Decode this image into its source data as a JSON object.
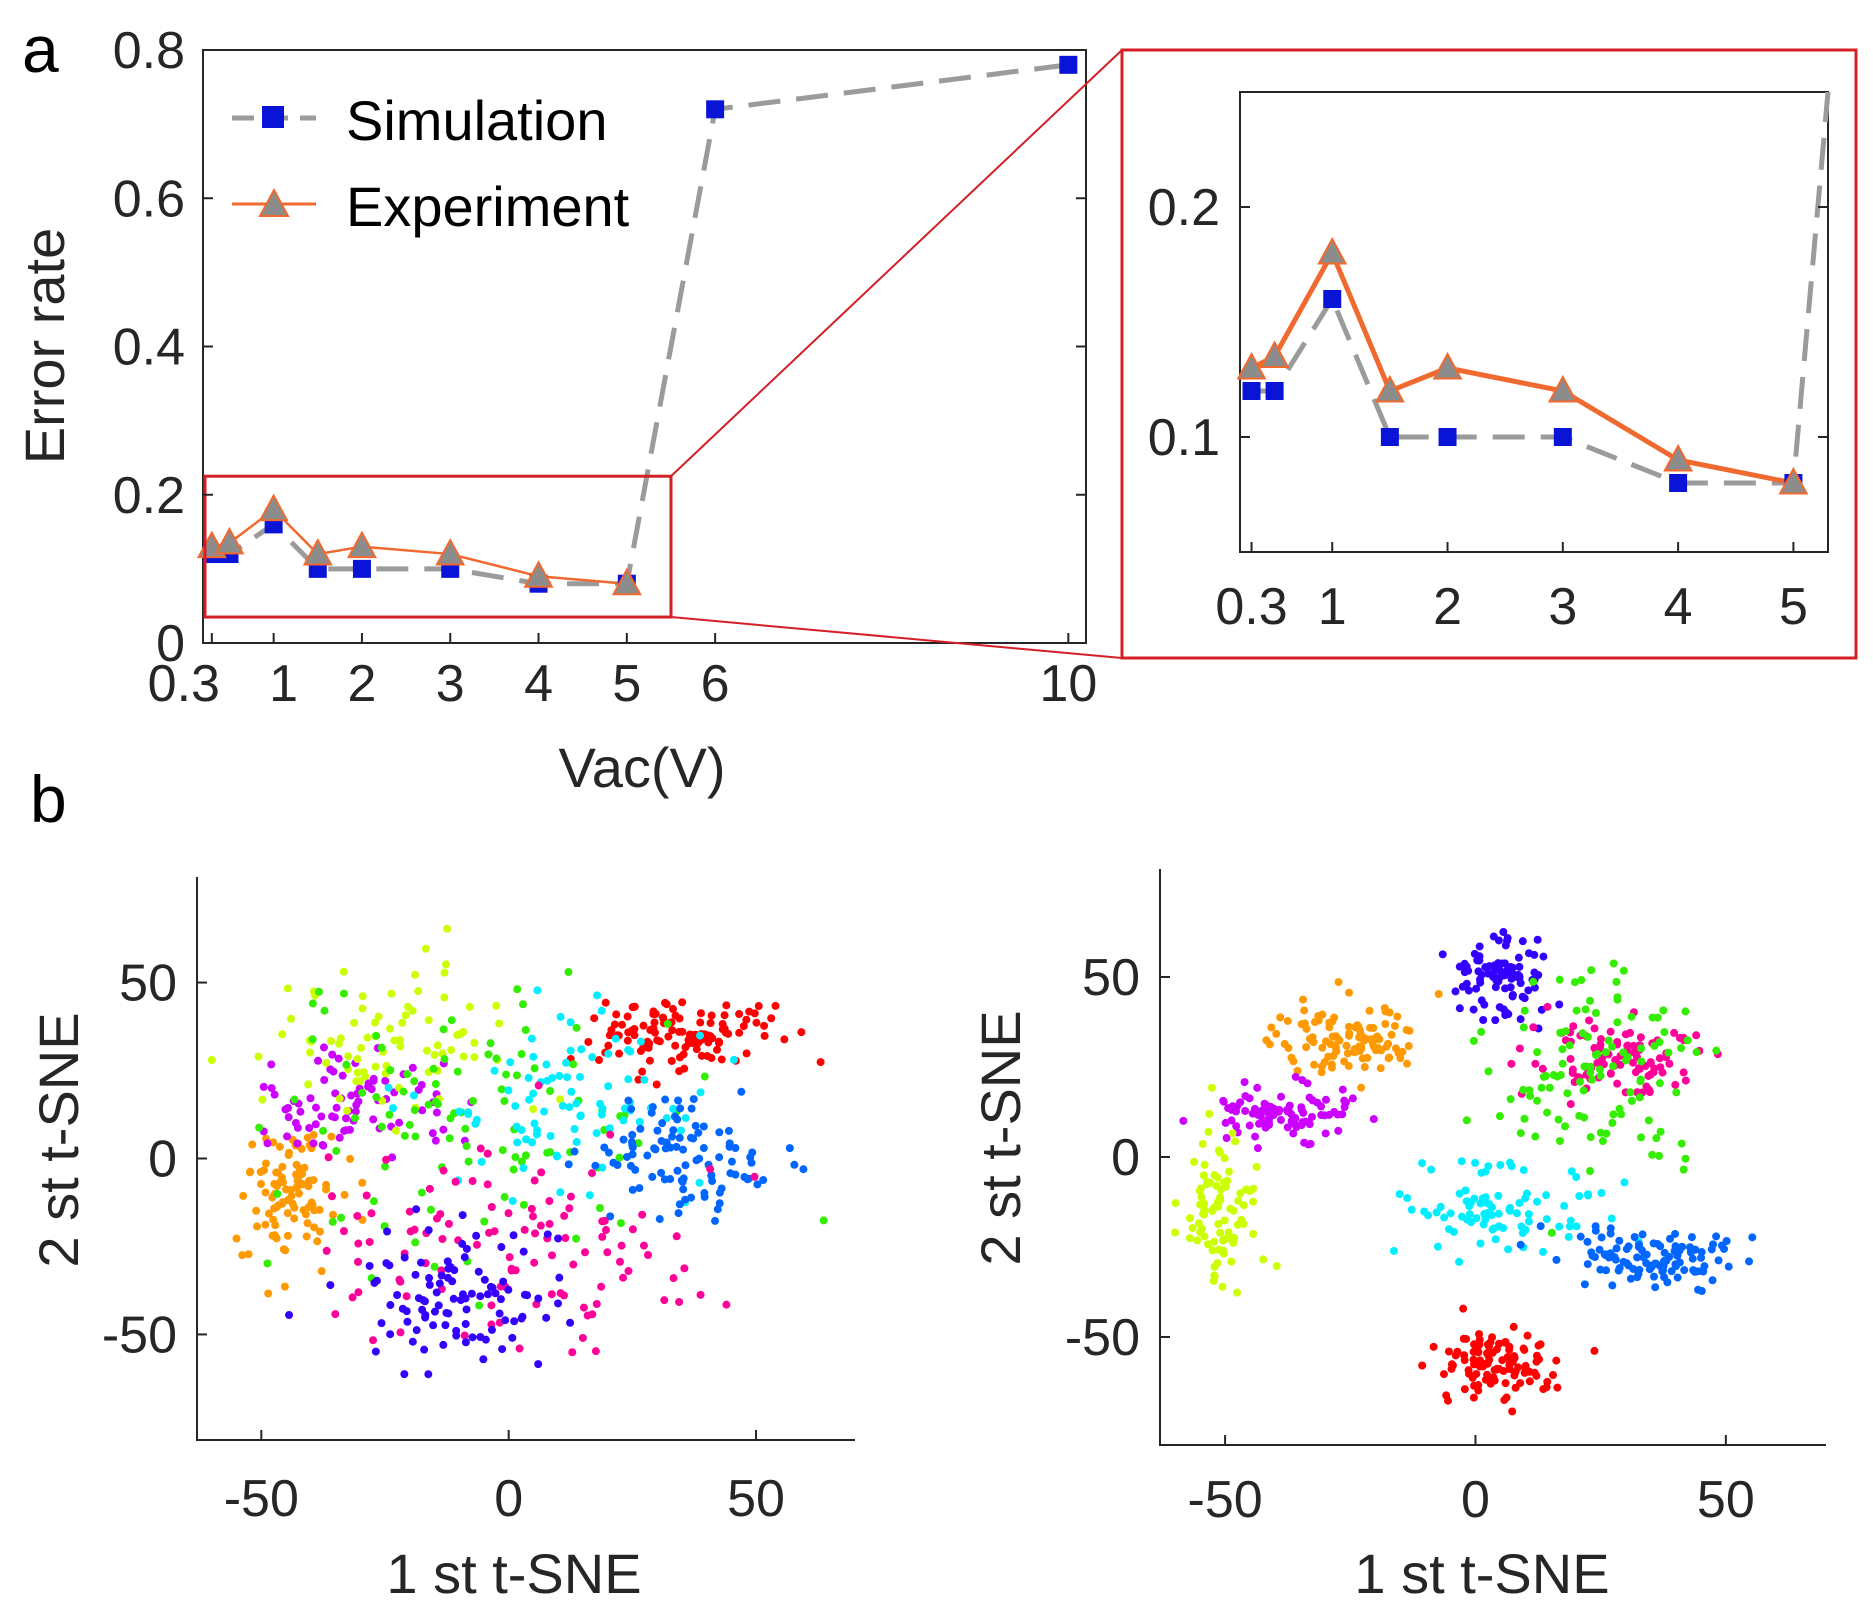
{
  "colors": {
    "simulation_line": "#9b9b9b",
    "simulation_marker": "#0a14d6",
    "experiment_line": "#f06a30",
    "experiment_marker": "#8c8c8c",
    "zoom_box": "#d41f26",
    "axis": "#262626"
  },
  "chart_data": [
    {
      "id": "a-main",
      "panel_label": "a",
      "type": "line",
      "xlabel": "Vac(V)",
      "ylabel": "Error rate",
      "xlim": [
        0.2,
        10.2
      ],
      "ylim": [
        0,
        0.8
      ],
      "xticks": [
        0.3,
        1,
        2,
        3,
        4,
        5,
        6,
        10
      ],
      "xtick_labels": [
        "0.3",
        "1",
        "2",
        "3",
        "4",
        "5",
        "6",
        "10"
      ],
      "yticks": [
        0,
        0.2,
        0.4,
        0.6,
        0.8
      ],
      "ytick_labels": [
        "0",
        "0.2",
        "0.4",
        "0.6",
        "0.8"
      ],
      "legend": {
        "position": "top-left",
        "entries": [
          "Simulation",
          "Experiment"
        ]
      },
      "series": [
        {
          "name": "Simulation",
          "x": [
            0.3,
            0.5,
            1,
            1.5,
            2,
            3,
            4,
            5,
            6,
            10
          ],
          "y": [
            0.12,
            0.12,
            0.16,
            0.1,
            0.1,
            0.1,
            0.08,
            0.08,
            0.72,
            0.78
          ]
        },
        {
          "name": "Experiment",
          "x": [
            0.3,
            0.5,
            1,
            1.5,
            2,
            3,
            4,
            5
          ],
          "y": [
            0.13,
            0.135,
            0.18,
            0.12,
            0.13,
            0.12,
            0.09,
            0.08
          ]
        }
      ],
      "zoom_box": {
        "x": [
          0.2,
          5.5
        ],
        "y": [
          0.035,
          0.225
        ]
      }
    },
    {
      "id": "a-zoom",
      "type": "line",
      "xlim": [
        0.2,
        5.3
      ],
      "ylim": [
        0.05,
        0.25
      ],
      "xticks": [
        0.3,
        1,
        2,
        3,
        4,
        5
      ],
      "xtick_labels": [
        "0.3",
        "1",
        "2",
        "3",
        "4",
        "5"
      ],
      "yticks": [
        0.1,
        0.2
      ],
      "ytick_labels": [
        "0.1",
        "0.2"
      ],
      "series": [
        {
          "name": "Simulation",
          "x": [
            0.3,
            0.5,
            1,
            1.5,
            2,
            3,
            4,
            5,
            5.3
          ],
          "y": [
            0.12,
            0.12,
            0.16,
            0.1,
            0.1,
            0.1,
            0.08,
            0.08,
            0.25
          ]
        },
        {
          "name": "Experiment",
          "x": [
            0.3,
            0.5,
            1,
            1.5,
            2,
            3,
            4,
            5
          ],
          "y": [
            0.13,
            0.135,
            0.18,
            0.12,
            0.13,
            0.12,
            0.09,
            0.08
          ]
        }
      ]
    },
    {
      "id": "b-left",
      "panel_label": "b",
      "type": "scatter",
      "xlabel": "1 st t-SNE",
      "ylabel": "2 st t-SNE",
      "xlim": [
        -63,
        70
      ],
      "ylim": [
        -80,
        80
      ],
      "xticks": [
        -50,
        0,
        50
      ],
      "xtick_labels": [
        "-50",
        "0",
        "50"
      ],
      "yticks": [
        -50,
        0,
        50
      ],
      "ytick_labels": [
        "-50",
        "0",
        "50"
      ],
      "seed": 7,
      "clusters": [
        {
          "color": "#ff0000",
          "center": [
            35,
            35
          ],
          "spread": [
            9,
            5
          ],
          "count": 120
        },
        {
          "color": "#ff9900",
          "center": [
            -45,
            -10
          ],
          "spread": [
            5,
            10
          ],
          "count": 100
        },
        {
          "color": "#cc00ff",
          "center": [
            -32,
            15
          ],
          "spread": [
            10,
            7
          ],
          "count": 80
        },
        {
          "color": "#ccff00",
          "center": [
            -20,
            35
          ],
          "spread": [
            14,
            12
          ],
          "count": 80
        },
        {
          "color": "#33ee00",
          "center": [
            -5,
            10
          ],
          "spread": [
            22,
            20
          ],
          "count": 100
        },
        {
          "color": "#00eeff",
          "center": [
            10,
            15
          ],
          "spread": [
            14,
            14
          ],
          "count": 90
        },
        {
          "color": "#0066ff",
          "center": [
            35,
            0
          ],
          "spread": [
            10,
            8
          ],
          "count": 100
        },
        {
          "color": "#ff0099",
          "center": [
            5,
            -25
          ],
          "spread": [
            22,
            15
          ],
          "count": 110
        },
        {
          "color": "#3300ff",
          "center": [
            -10,
            -40
          ],
          "spread": [
            12,
            10
          ],
          "count": 100
        }
      ]
    },
    {
      "id": "b-right",
      "type": "scatter",
      "xlabel": "1 st t-SNE",
      "ylabel": "2 st t-SNE",
      "xlim": [
        -63,
        70
      ],
      "ylim": [
        -80,
        80
      ],
      "xticks": [
        -50,
        0,
        50
      ],
      "xtick_labels": [
        "-50",
        "0",
        "50"
      ],
      "yticks": [
        -50,
        0,
        50
      ],
      "ytick_labels": [
        "-50",
        "0",
        "50"
      ],
      "seed": 13,
      "clusters": [
        {
          "color": "#3300ff",
          "center": [
            5,
            50
          ],
          "spread": [
            5,
            6
          ],
          "count": 90
        },
        {
          "color": "#ff9900",
          "center": [
            -25,
            32
          ],
          "spread": [
            8,
            5
          ],
          "count": 110
        },
        {
          "color": "#cc00ff",
          "center": [
            -38,
            12
          ],
          "spread": [
            7,
            4
          ],
          "count": 90
        },
        {
          "color": "#ff0099",
          "center": [
            28,
            28
          ],
          "spread": [
            8,
            5
          ],
          "count": 100
        },
        {
          "color": "#33ee00",
          "center": [
            25,
            25
          ],
          "spread": [
            12,
            14
          ],
          "count": 110
        },
        {
          "color": "#ccff00",
          "center": [
            -50,
            -15
          ],
          "spread": [
            4,
            10
          ],
          "count": 90
        },
        {
          "color": "#00eeff",
          "center": [
            5,
            -15
          ],
          "spread": [
            11,
            6
          ],
          "count": 90
        },
        {
          "color": "#0066ff",
          "center": [
            35,
            -28
          ],
          "spread": [
            9,
            4
          ],
          "count": 110
        },
        {
          "color": "#ff0000",
          "center": [
            5,
            -58
          ],
          "spread": [
            5,
            5
          ],
          "count": 110
        }
      ]
    }
  ]
}
